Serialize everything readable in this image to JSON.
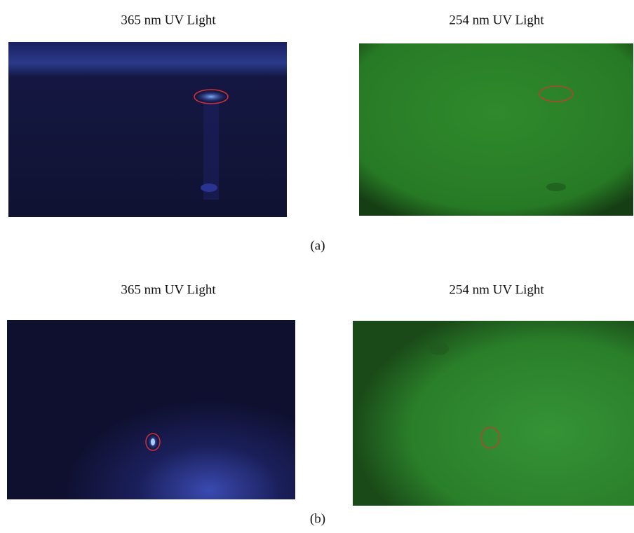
{
  "panels": [
    {
      "left_label": "365 nm UV Light",
      "right_label": "254 nm UV Light",
      "caption": "(a)"
    },
    {
      "left_label": "365 nm UV Light",
      "right_label": "254 nm UV Light",
      "caption": "(b)"
    }
  ]
}
